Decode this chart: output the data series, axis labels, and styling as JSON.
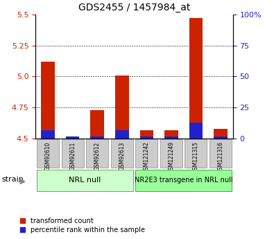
{
  "title": "GDS2455 / 1457984_at",
  "samples": [
    "GSM92610",
    "GSM92611",
    "GSM92612",
    "GSM92613",
    "GSM121242",
    "GSM121249",
    "GSM121315",
    "GSM121316"
  ],
  "red_values": [
    5.12,
    4.52,
    4.73,
    5.01,
    4.57,
    4.57,
    5.47,
    4.58
  ],
  "blue_values": [
    4.565,
    4.515,
    4.515,
    4.565,
    4.515,
    4.52,
    4.63,
    4.515
  ],
  "baseline": 4.5,
  "ylim_left": [
    4.5,
    5.5
  ],
  "ylim_right": [
    0,
    100
  ],
  "yticks_left": [
    4.5,
    4.75,
    5.0,
    5.25,
    5.5
  ],
  "yticks_right": [
    0,
    25,
    50,
    75,
    100
  ],
  "ytick_labels_right": [
    "0",
    "25",
    "50",
    "75",
    "100%"
  ],
  "group1_label": "NRL null",
  "group2_label": "NR2E3 transgene in NRL null",
  "strain_label": "strain",
  "legend_red": "transformed count",
  "legend_blue": "percentile rank within the sample",
  "red_color": "#cc2200",
  "blue_color": "#2222cc",
  "group1_bg": "#ccffcc",
  "group2_bg": "#99ff99",
  "tick_bg": "#cccccc",
  "bar_width": 0.55
}
